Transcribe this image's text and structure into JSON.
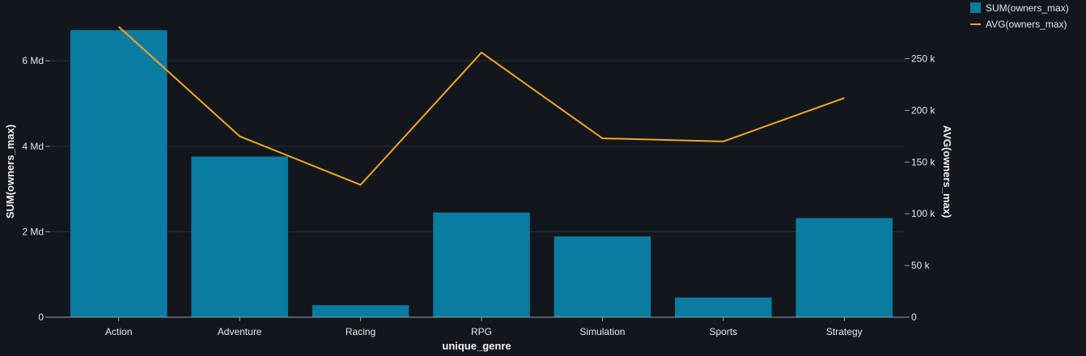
{
  "chart_data": {
    "type": "bar",
    "title": "",
    "xlabel": "unique_genre",
    "ylabel": "SUM(owners_max)",
    "y2label": "AVG(owners_max)",
    "categories": [
      "Action",
      "Adventure",
      "Racing",
      "RPG",
      "Simulation",
      "Sports",
      "Strategy"
    ],
    "series": [
      {
        "name": "SUM(owners_max)",
        "type": "bar",
        "axis": "left",
        "color": "#0a7ca1",
        "values": [
          6720000000,
          3760000000,
          280000000,
          2450000000,
          1890000000,
          460000000,
          2320000000
        ]
      },
      {
        "name": "AVG(owners_max)",
        "type": "line",
        "axis": "right",
        "color": "#f5a623",
        "values": [
          281000,
          175000,
          128000,
          256000,
          173000,
          170000,
          212000
        ]
      }
    ],
    "ylim": [
      0,
      6800000000
    ],
    "y2lim": [
      0,
      281000
    ],
    "yticks": [
      {
        "value": 0,
        "label": "0"
      },
      {
        "value": 2000000000,
        "label": "2 Md"
      },
      {
        "value": 4000000000,
        "label": "4 Md"
      },
      {
        "value": 6000000000,
        "label": "6 Md"
      }
    ],
    "y2ticks": [
      {
        "value": 0,
        "label": "0"
      },
      {
        "value": 50000,
        "label": "50 k"
      },
      {
        "value": 100000,
        "label": "100 k"
      },
      {
        "value": 150000,
        "label": "150 k"
      },
      {
        "value": 200000,
        "label": "200 k"
      },
      {
        "value": 250000,
        "label": "250 k"
      }
    ],
    "grid": true,
    "legend": "top-right"
  }
}
